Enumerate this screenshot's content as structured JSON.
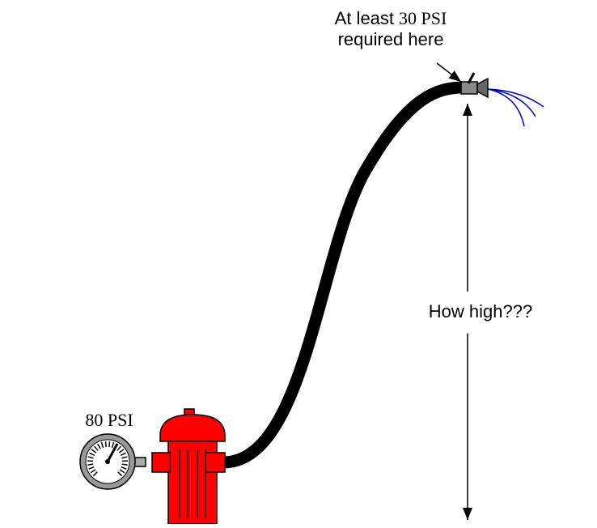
{
  "annotations": {
    "nozzle_label": {
      "line1_prefix": "At least",
      "line1_value": "30 PSI",
      "line2": "required here"
    },
    "height_label": "How high???",
    "gauge_label": "80 PSI"
  }
}
